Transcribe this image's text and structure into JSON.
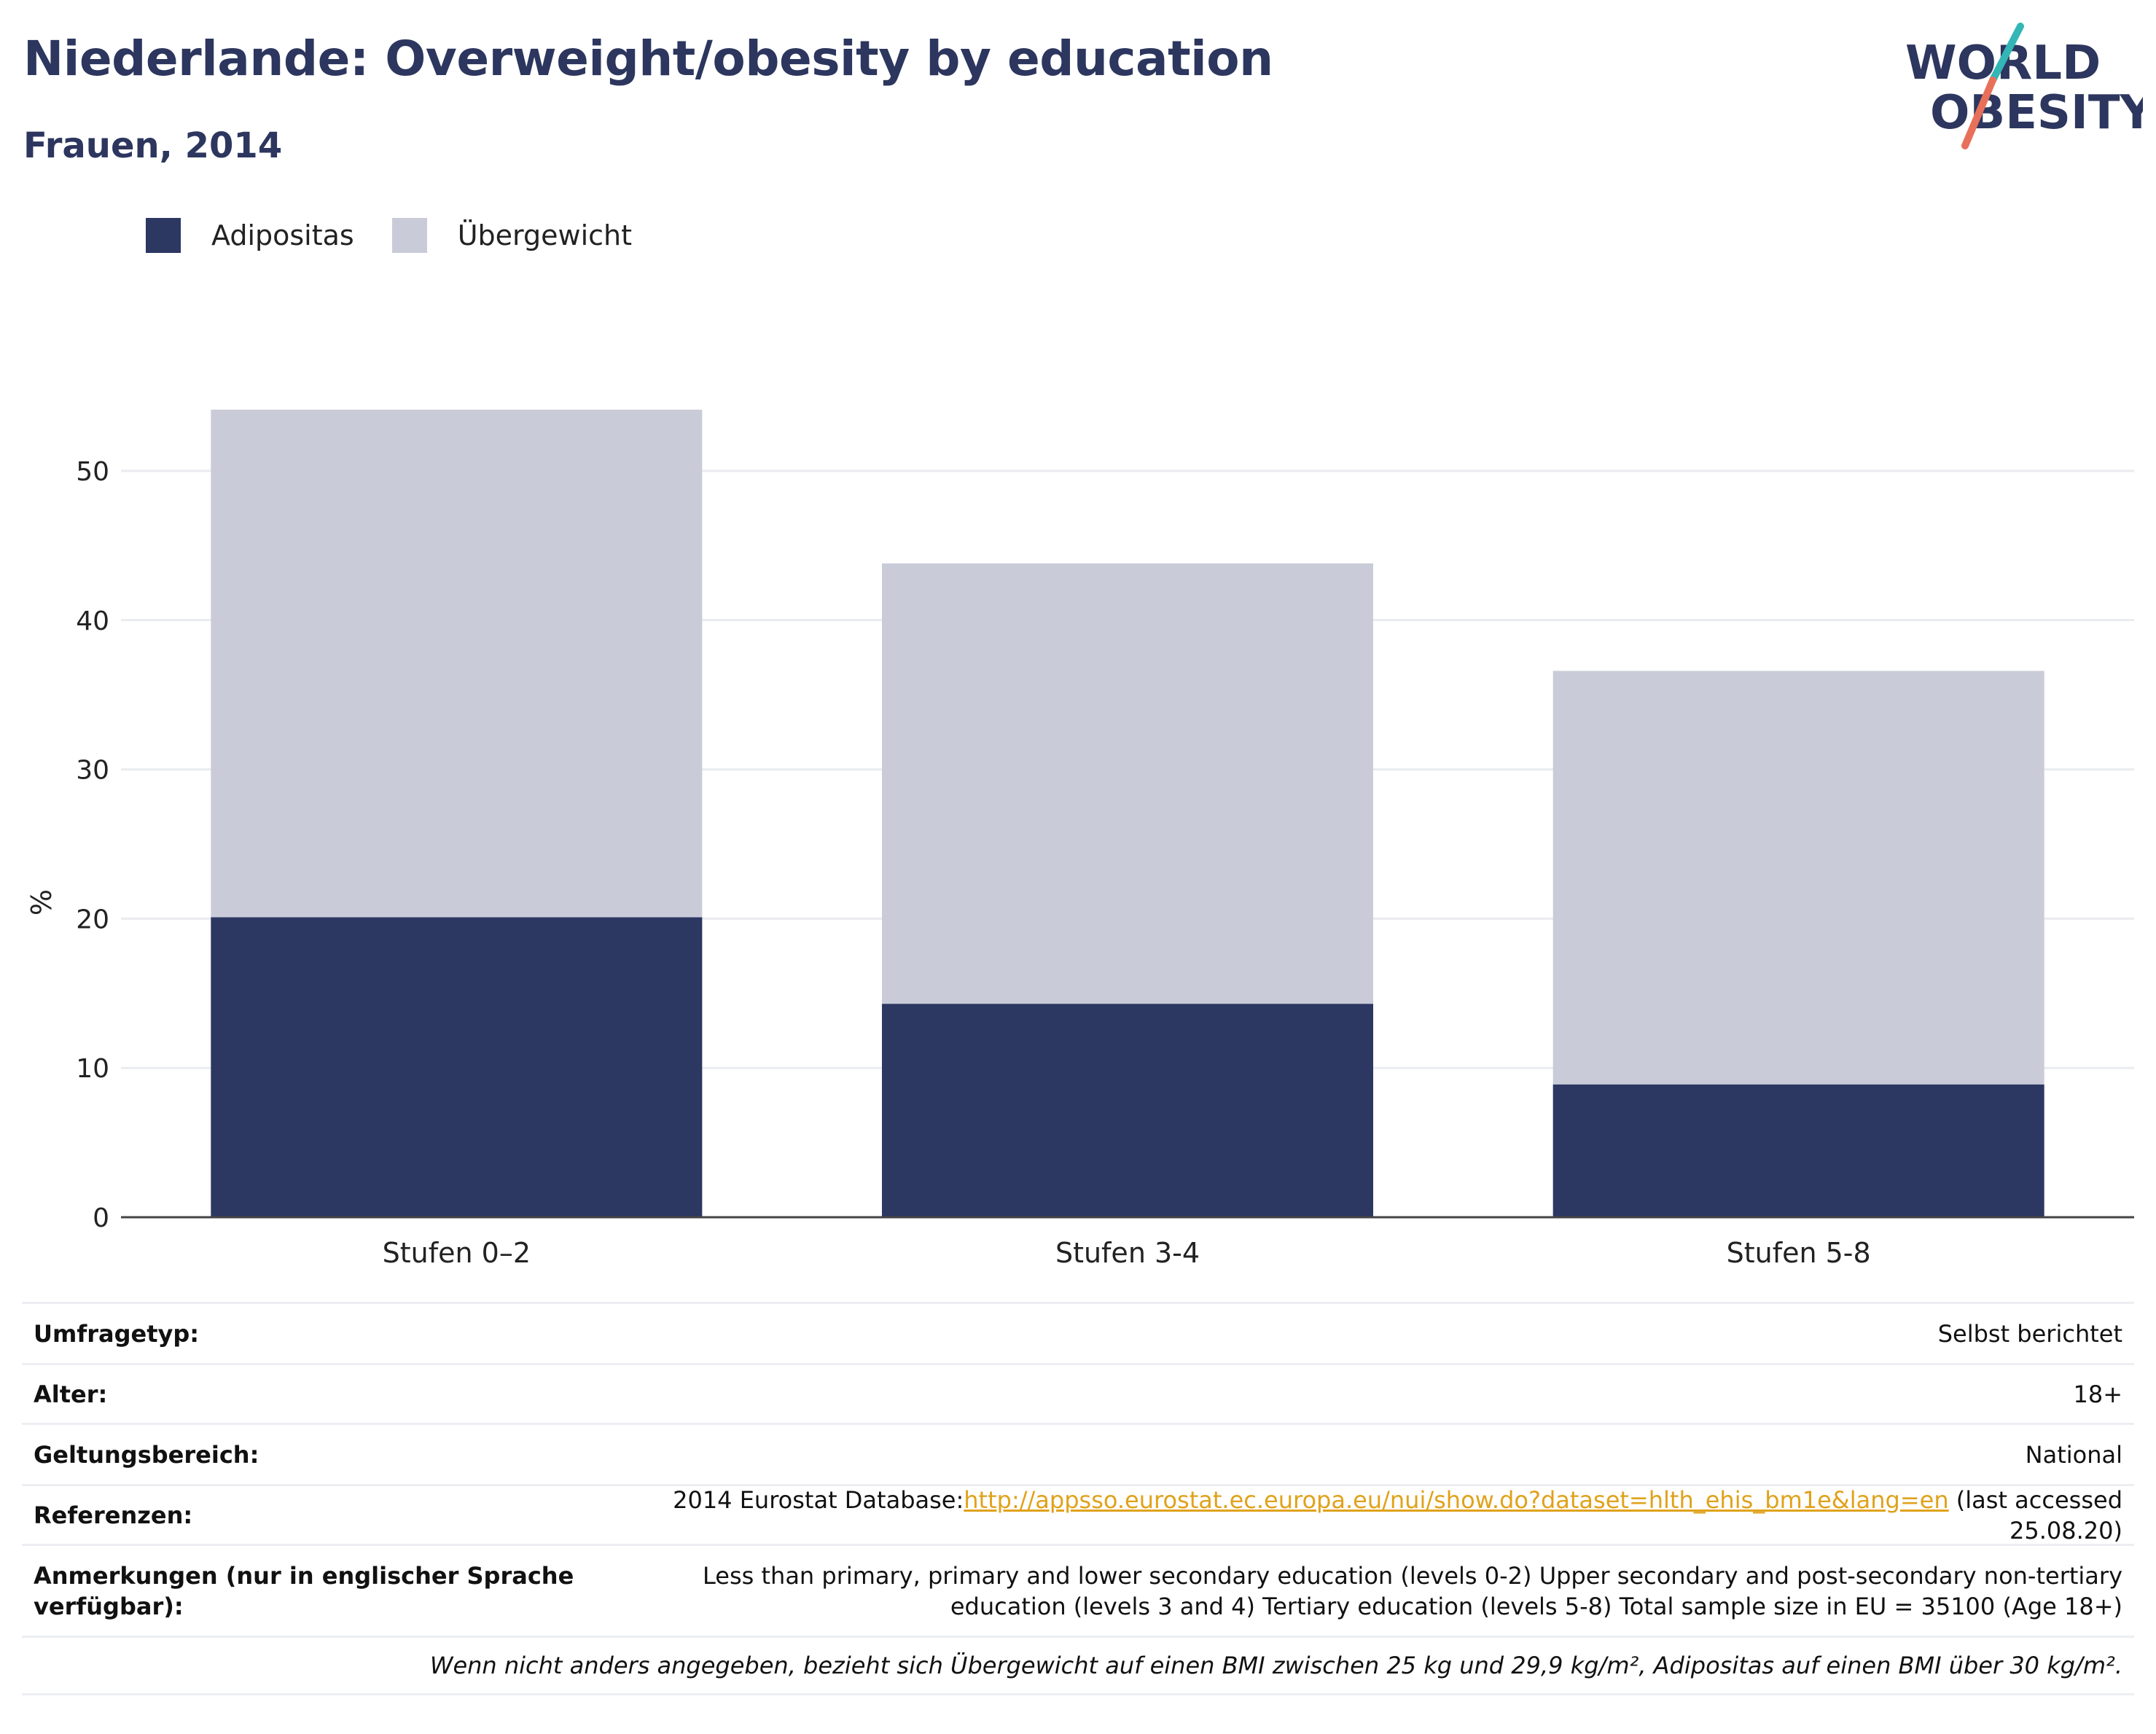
{
  "title": "Niederlande: Overweight/obesity by education",
  "subtitle": "Frauen, 2014",
  "logo": {
    "line1": "WORLD",
    "line2": "OBESITY",
    "accent_color": "#e8705a",
    "accent_color2": "#33b6b5",
    "text_color": "#2c365e"
  },
  "legend": [
    {
      "name": "Adipositas",
      "color": "#2c3762"
    },
    {
      "name": "Übergewicht",
      "color": "#c9ccd8"
    }
  ],
  "chart_data": {
    "type": "bar",
    "stacked": true,
    "categories": [
      "Stufen 0–2",
      "Stufen 3-4",
      "Stufen 5-8"
    ],
    "series": [
      {
        "name": "Adipositas",
        "values": [
          20.1,
          14.3,
          8.9
        ],
        "color": "#2c3762"
      },
      {
        "name": "Übergewicht",
        "values": [
          34.0,
          29.5,
          27.7
        ],
        "color": "#c9ccd8"
      }
    ],
    "ylabel": "%",
    "ylim": [
      0,
      57
    ],
    "yticks": [
      0,
      10,
      20,
      30,
      40,
      50
    ],
    "grid": true,
    "legend_position": "top-left"
  },
  "info": {
    "survey": {
      "label": "Umfragetyp:",
      "value": "Selbst berichtet"
    },
    "age": {
      "label": "Alter:",
      "value": "18+"
    },
    "scope": {
      "label": "Geltungsbereich:",
      "value": "National"
    },
    "references": {
      "label": "Referenzen:",
      "prefix": "2014 Eurostat Database:",
      "link": "http://appsso.eurostat.ec.europa.eu/nui/show.do?dataset=hlth_ehis_bm1e&lang=en",
      "suffix": " (last accessed 25.08.20)"
    },
    "notes": {
      "label": "Anmerkungen (nur in englischer Sprache verfügbar):",
      "value": "Less than primary, primary and lower secondary education (levels 0-2) Upper secondary and post-secondary non-tertiary education (levels 3 and 4) Tertiary education (levels 5-8) Total sample size in EU = 35100 (Age 18+)"
    },
    "footnote": "Wenn nicht anders angegeben, bezieht sich Übergewicht auf einen BMI zwischen 25 kg und 29,9 kg/m², Adipositas auf einen BMI über 30 kg/m²."
  }
}
